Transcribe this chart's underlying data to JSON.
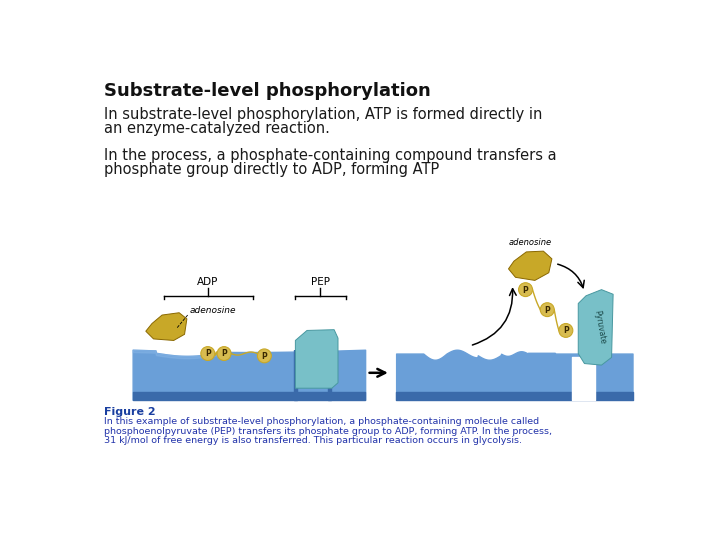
{
  "title": "Substrate-level phosphorylation",
  "para1_line1": "In substrate-level phosphorylation, ATP is formed directly in",
  "para1_line2": "an enzyme-catalyzed reaction.",
  "para2_line1": "In the process, a phosphate-containing compound transfers a",
  "para2_line2": "phosphate group directly to ADP, forming ATP",
  "figure_label": "Figure 2",
  "caption_line1": "In this example of substrate-level phosphorylation, a phosphate-containing molecule called",
  "caption_line2": "phosphoenolpyruvate (PEP) transfers its phosphate group to ADP, forming ATP. In the process,",
  "caption_line3": "31 kJ/mol of free energy is also transferred. This particular reaction occurs in glycolysis.",
  "bg_color": "#ffffff",
  "title_color": "#111111",
  "text_color": "#1a1a1a",
  "figure_label_color": "#1a3fa0",
  "caption_color": "#2233aa",
  "blue_main": "#6a9fd8",
  "blue_dark": "#3a6aaa",
  "blue_light": "#8ab8e8",
  "gold_main": "#c8a828",
  "gold_light": "#d8bc50",
  "teal_main": "#78c0c8",
  "teal_dark": "#4898a0"
}
